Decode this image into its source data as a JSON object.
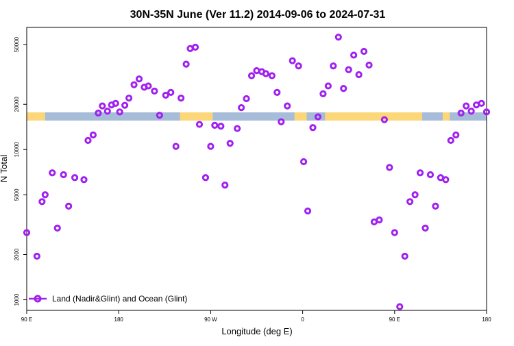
{
  "chart_data": {
    "type": "scatter",
    "title": "30N-35N June (Ver 11.2)   2014-09-06 to 2024-07-31",
    "xlabel": "Longitude (deg E)",
    "ylabel": "N Total",
    "x_axis": {
      "range_deg_east": [
        90,
        180
      ],
      "continuous_span_deg": [
        90,
        540
      ],
      "ticks": [
        {
          "value": 90,
          "label": "90 E"
        },
        {
          "value": 180,
          "label": "180"
        },
        {
          "value": 270,
          "label": "90 W"
        },
        {
          "value": 360,
          "label": "0"
        },
        {
          "value": 450,
          "label": "90 E"
        },
        {
          "value": 540,
          "label": "180"
        }
      ]
    },
    "y_axis": {
      "scale": "log",
      "range": [
        850,
        65000
      ],
      "ticks": [
        {
          "value": 1000,
          "label": "1000"
        },
        {
          "value": 2000,
          "label": "2000"
        },
        {
          "value": 5000,
          "label": "5000"
        },
        {
          "value": 10000,
          "label": "10000"
        },
        {
          "value": 20000,
          "label": "20000"
        },
        {
          "value": 50000,
          "label": "50000"
        }
      ]
    },
    "grid": false,
    "legend": {
      "position": "bottom-left"
    },
    "series": [
      {
        "name": "Land (Nadir&Glint) and Ocean (Glint)",
        "color": "#A020F0",
        "marker": "open-circle",
        "x": [
          90,
          100,
          105,
          108,
          115,
          120,
          126,
          131,
          137,
          146,
          150,
          155,
          160,
          164,
          169,
          173,
          177,
          181,
          186,
          190,
          195,
          200,
          205,
          209,
          215,
          220,
          226,
          231,
          236,
          241,
          246,
          250,
          255,
          259,
          265,
          270,
          274,
          280,
          284,
          289,
          296,
          300,
          305,
          310,
          315,
          320,
          324,
          330,
          335,
          339,
          345,
          350,
          356,
          361,
          365,
          370,
          375,
          380,
          385,
          390,
          395,
          400,
          405,
          410,
          415,
          420,
          425,
          430,
          435,
          440,
          445,
          450,
          455,
          460,
          465,
          470,
          475,
          480,
          485,
          490,
          495,
          500,
          505,
          510,
          515,
          520,
          525,
          530,
          535,
          540
        ],
        "y": [
          2800,
          1950,
          4500,
          5000,
          7000,
          3000,
          6800,
          4200,
          6500,
          6300,
          11500,
          12500,
          17500,
          19500,
          18000,
          19800,
          20300,
          17800,
          19700,
          22000,
          27000,
          29500,
          26000,
          26500,
          24500,
          16900,
          23000,
          24000,
          10500,
          22000,
          37000,
          47000,
          48000,
          14700,
          6500,
          10500,
          14500,
          14300,
          5800,
          11000,
          13800,
          19000,
          21800,
          31000,
          33500,
          33000,
          32000,
          31000,
          24000,
          15300,
          19500,
          39000,
          36000,
          8300,
          3900,
          14000,
          16500,
          23500,
          26500,
          36000,
          56000,
          25500,
          34000,
          42500,
          31500,
          45000,
          36500,
          3300,
          3400,
          15800,
          7600,
          2800,
          900,
          1950,
          4500,
          5000,
          7000,
          3000,
          6800,
          4200,
          6500,
          6300,
          11500,
          12500,
          17500,
          19500,
          18000,
          19800,
          20300,
          17800
        ]
      }
    ],
    "annotations": [
      "Land/ocean mask strip at ~16000: tan = land, blue-gray = ocean"
    ]
  }
}
